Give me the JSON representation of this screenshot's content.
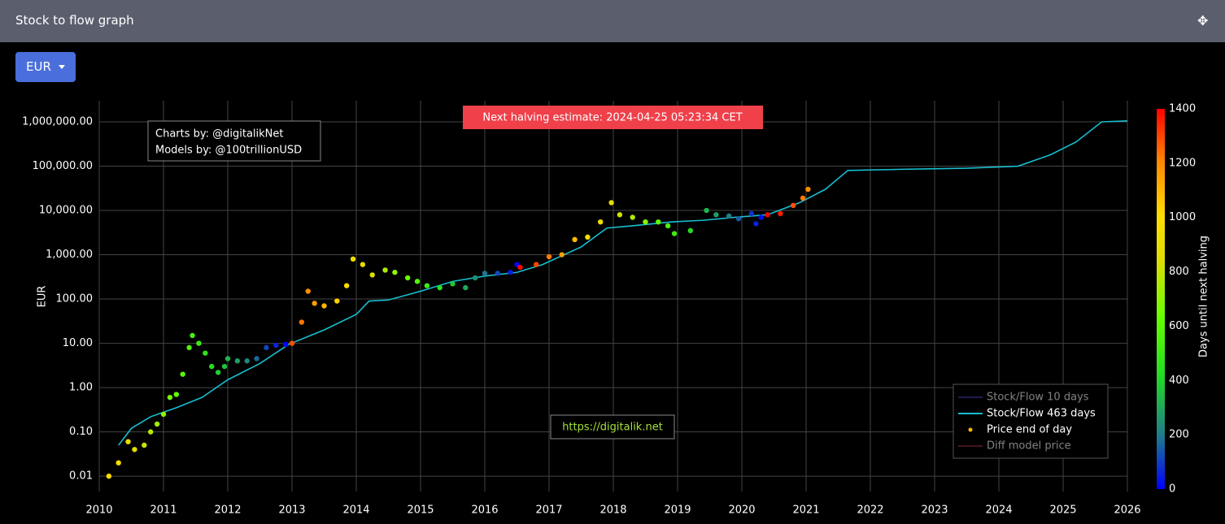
{
  "header": {
    "title": "Stock to flow graph"
  },
  "controls": {
    "currency": "EUR"
  },
  "chart_data": {
    "type": "scatter",
    "y_label": "EUR",
    "log_y": true,
    "grid": true,
    "xlim": [
      2010,
      2026
    ],
    "xticks": [
      2010,
      2011,
      2012,
      2013,
      2014,
      2015,
      2016,
      2017,
      2018,
      2019,
      2020,
      2021,
      2022,
      2023,
      2024,
      2025,
      2026
    ],
    "ylim": [
      0.0045,
      3000000
    ],
    "yticks": [
      {
        "value": 0.01,
        "label": "0.01"
      },
      {
        "value": 0.1,
        "label": "0.10"
      },
      {
        "value": 1,
        "label": "1.00"
      },
      {
        "value": 10,
        "label": "10.00"
      },
      {
        "value": 100,
        "label": "100.00"
      },
      {
        "value": 1000,
        "label": "1,000.00"
      },
      {
        "value": 10000,
        "label": "10,000.00"
      },
      {
        "value": 100000,
        "label": "100,000.00"
      },
      {
        "value": 1000000,
        "label": "1,000,000.00"
      }
    ],
    "annotations": {
      "halving": "Next halving estimate: 2024-04-25 05:23:34 CET",
      "credits": [
        "Charts by: @digitalikNet",
        "Models by: @100trillionUSD"
      ],
      "url": "https://digitalik.net"
    },
    "legend_position": "bottom-right",
    "colorbar": {
      "title": "Days until next halving",
      "lim": [
        0,
        1400
      ],
      "ticks": [
        0,
        200,
        400,
        600,
        800,
        1000,
        1200,
        1400
      ],
      "colorscale": [
        [
          0,
          "#0000ff"
        ],
        [
          0.14,
          "#1f7a8c"
        ],
        [
          0.3,
          "#22dd22"
        ],
        [
          0.45,
          "#66ff00"
        ],
        [
          0.6,
          "#dddd00"
        ],
        [
          0.72,
          "#ffdd00"
        ],
        [
          0.86,
          "#ff8800"
        ],
        [
          1,
          "#ff0000"
        ]
      ]
    },
    "series": [
      {
        "name": "Stock/Flow 10 days",
        "mode": "line",
        "color": "#3a3aa0",
        "visible": false
      },
      {
        "name": "Stock/Flow 463 days",
        "mode": "line",
        "color": "#17becf",
        "visible": true,
        "x": [
          2010.3,
          2010.5,
          2010.8,
          2011.2,
          2011.6,
          2012.0,
          2012.5,
          2012.95,
          2013.5,
          2014.0,
          2014.2,
          2014.5,
          2015.0,
          2015.5,
          2016.0,
          2016.5,
          2016.9,
          2017.5,
          2017.9,
          2018.3,
          2018.9,
          2019.4,
          2019.9,
          2020.4,
          2020.9,
          2021.3,
          2021.65,
          2022.5,
          2023.5,
          2024.3,
          2024.8,
          2025.2,
          2025.6,
          2026.0
        ],
        "values": [
          0.05,
          0.12,
          0.22,
          0.35,
          0.6,
          1.5,
          3.5,
          9.5,
          20,
          45,
          90,
          95,
          150,
          250,
          330,
          400,
          600,
          1500,
          4000,
          4500,
          5500,
          6000,
          7000,
          8000,
          15000,
          30000,
          80000,
          85000,
          90000,
          100000,
          180000,
          350000,
          1000000,
          1050000
        ]
      },
      {
        "name": "Price end of day",
        "mode": "markers",
        "color": "#f5b800",
        "visible": true,
        "x": [
          2010.15,
          2010.3,
          2010.45,
          2010.55,
          2010.7,
          2010.8,
          2010.9,
          2011.0,
          2011.1,
          2011.2,
          2011.3,
          2011.4,
          2011.45,
          2011.55,
          2011.65,
          2011.75,
          2011.85,
          2011.95,
          2012.0,
          2012.15,
          2012.3,
          2012.45,
          2012.6,
          2012.75,
          2012.9,
          2013.0,
          2013.15,
          2013.25,
          2013.35,
          2013.5,
          2013.7,
          2013.85,
          2013.95,
          2014.1,
          2014.25,
          2014.45,
          2014.6,
          2014.8,
          2014.95,
          2015.1,
          2015.3,
          2015.5,
          2015.7,
          2015.85,
          2016.0,
          2016.2,
          2016.4,
          2016.5,
          2016.55,
          2016.8,
          2017.0,
          2017.2,
          2017.4,
          2017.6,
          2017.8,
          2017.97,
          2018.1,
          2018.3,
          2018.5,
          2018.7,
          2018.85,
          2018.95,
          2019.2,
          2019.45,
          2019.6,
          2019.8,
          2019.95,
          2020.15,
          2020.22,
          2020.3,
          2020.4,
          2020.6,
          2020.8,
          2020.95,
          2021.03
        ],
        "values": [
          0.01,
          0.02,
          0.06,
          0.04,
          0.05,
          0.1,
          0.15,
          0.25,
          0.6,
          0.7,
          2,
          8,
          15,
          10,
          6,
          3,
          2.2,
          3,
          4.5,
          4,
          4,
          4.5,
          8,
          9,
          9.5,
          10,
          30,
          150,
          80,
          70,
          90,
          200,
          800,
          600,
          350,
          450,
          400,
          300,
          250,
          200,
          180,
          220,
          180,
          300,
          380,
          380,
          400,
          600,
          520,
          600,
          900,
          1000,
          2200,
          2500,
          5500,
          15000,
          8000,
          7000,
          5500,
          5500,
          4500,
          3000,
          3500,
          10000,
          8000,
          7500,
          6500,
          8500,
          5000,
          7000,
          8000,
          8500,
          13000,
          19000,
          30000
        ],
        "color_values": [
          1008,
          953,
          898,
          862,
          807,
          771,
          734,
          698,
          661,
          625,
          588,
          552,
          533,
          497,
          460,
          424,
          387,
          351,
          332,
          278,
          223,
          168,
          113,
          58,
          4,
          1286,
          1231,
          1194,
          1158,
          1103,
          1030,
          975,
          939,
          884,
          829,
          756,
          701,
          628,
          573,
          519,
          446,
          373,
          300,
          245,
          190,
          117,
          44,
          7,
          1392,
          1300,
          1227,
          1154,
          1081,
          1008,
          935,
          873,
          825,
          752,
          679,
          606,
          552,
          515,
          424,
          332,
          278,
          205,
          150,
          77,
          51,
          22,
          1428,
          1355,
          1282,
          1227,
          1198
        ]
      },
      {
        "name": "Diff model price",
        "mode": "line",
        "color": "#8b2a3e",
        "visible": false
      }
    ]
  }
}
